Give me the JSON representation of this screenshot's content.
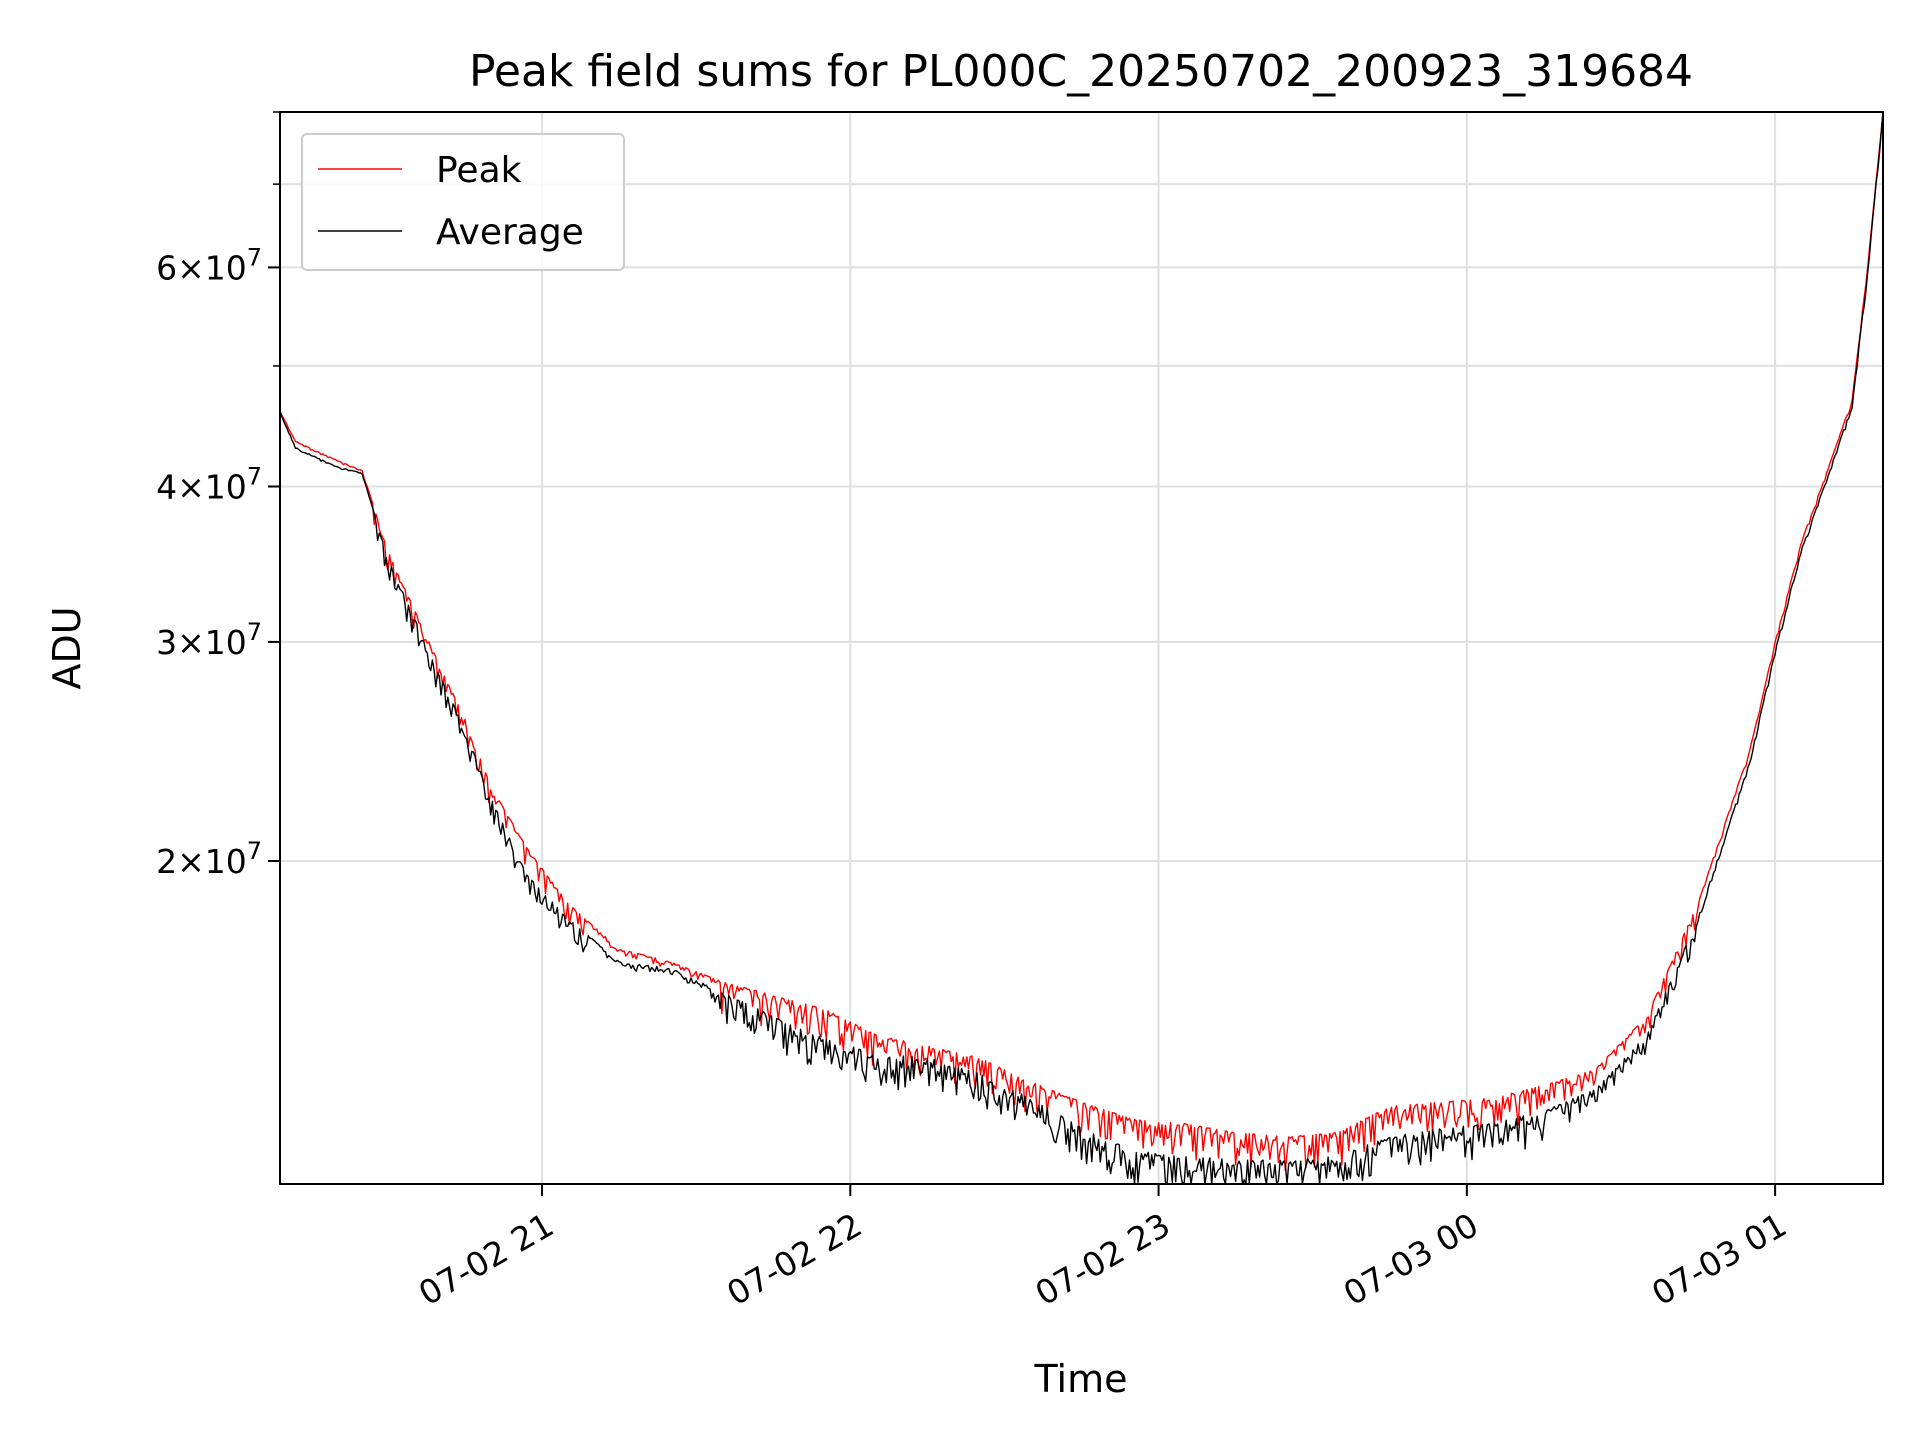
{
  "chart_data": {
    "type": "line",
    "title": "Peak field sums for PL000C_20250702_200923_319684",
    "xlabel": "Time",
    "ylabel": "ADU",
    "yscale": "log",
    "xlim": [
      "2025-07-02 20:09",
      "2025-07-03 01:21"
    ],
    "ylim": [
      11000000,
      80000000
    ],
    "grid": true,
    "legend_position": "upper-left",
    "x_ticks": [
      "07-02 21",
      "07-02 22",
      "07-02 23",
      "07-03 00",
      "07-03 01"
    ],
    "y_ticks": [
      {
        "value": 20000000,
        "mantissa": "2",
        "exponent": "7"
      },
      {
        "value": 30000000,
        "mantissa": "3",
        "exponent": "7"
      },
      {
        "value": 40000000,
        "mantissa": "4",
        "exponent": "7"
      },
      {
        "value": 60000000,
        "mantissa": "6",
        "exponent": "7"
      }
    ],
    "x": [
      "2025-07-02 20:09",
      "2025-07-02 20:12",
      "2025-07-02 20:20",
      "2025-07-02 20:25",
      "2025-07-02 20:30",
      "2025-07-02 20:38",
      "2025-07-02 20:45",
      "2025-07-02 20:50",
      "2025-07-02 20:57",
      "2025-07-02 21:05",
      "2025-07-02 21:15",
      "2025-07-02 21:25",
      "2025-07-02 21:35",
      "2025-07-02 21:45",
      "2025-07-02 21:55",
      "2025-07-02 22:05",
      "2025-07-02 22:15",
      "2025-07-02 22:25",
      "2025-07-02 22:35",
      "2025-07-02 22:45",
      "2025-07-02 22:55",
      "2025-07-02 23:05",
      "2025-07-02 23:15",
      "2025-07-02 23:25",
      "2025-07-02 23:35",
      "2025-07-02 23:45",
      "2025-07-02 23:55",
      "2025-07-03 00:05",
      "2025-07-03 00:15",
      "2025-07-03 00:25",
      "2025-07-03 00:35",
      "2025-07-03 00:45",
      "2025-07-03 00:55",
      "2025-07-03 01:00",
      "2025-07-03 01:05",
      "2025-07-03 01:10",
      "2025-07-03 01:15",
      "2025-07-03 01:18",
      "2025-07-03 01:21"
    ],
    "series": [
      {
        "name": "Peak",
        "color": "#ff0000",
        "values": [
          46000000,
          43500000,
          42000000,
          41200000,
          35500000,
          30000000,
          26000000,
          23000000,
          20500000,
          18500000,
          17000000,
          16600000,
          16000000,
          15600000,
          15200000,
          14500000,
          14200000,
          13900000,
          13300000,
          12800000,
          12400000,
          12300000,
          12100000,
          12000000,
          12100000,
          12700000,
          12800000,
          12900000,
          13200000,
          13600000,
          15000000,
          18500000,
          24500000,
          30000000,
          36000000,
          41000000,
          47000000,
          60000000,
          80000000
        ]
      },
      {
        "name": "Average",
        "color": "#000000",
        "values": [
          46000000,
          43000000,
          41500000,
          41000000,
          35000000,
          29500000,
          25500000,
          22500000,
          19500000,
          18000000,
          16600000,
          16400000,
          15700000,
          15000000,
          14400000,
          14000000,
          13900000,
          13500000,
          12900000,
          12200000,
          11700000,
          11600000,
          11500000,
          11500000,
          11600000,
          12000000,
          12200000,
          12300000,
          12600000,
          13100000,
          14500000,
          18000000,
          24000000,
          29500000,
          35500000,
          40500000,
          46500000,
          59500000,
          80000000
        ]
      }
    ]
  }
}
